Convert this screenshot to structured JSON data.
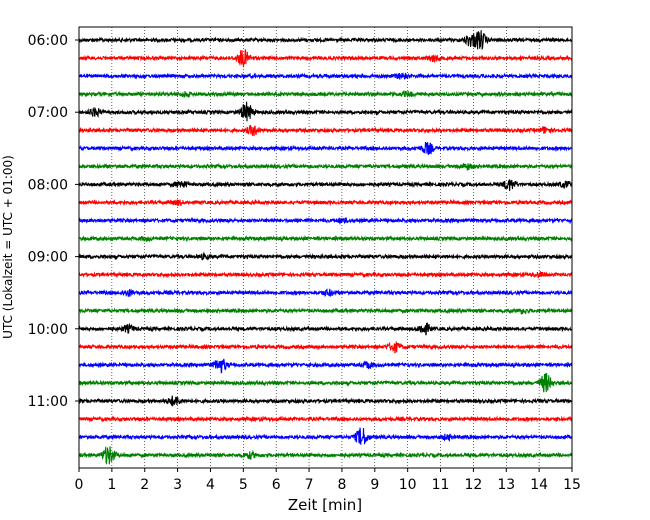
{
  "chart_data": {
    "type": "line",
    "title": "",
    "xlabel": "Zeit  [min]",
    "ylabel": "UTC (Lokalzeit = UTC + 01:00)",
    "xlim": [
      0,
      15
    ],
    "xticks": [
      0,
      1,
      2,
      3,
      4,
      5,
      6,
      7,
      8,
      9,
      10,
      11,
      12,
      13,
      14,
      15
    ],
    "ytick_labels": [
      "06:00",
      "07:00",
      "08:00",
      "09:00",
      "10:00",
      "11:00"
    ],
    "grid": "vertical dotted",
    "trace_colors": [
      "#000000",
      "#ff0000",
      "#0000ff",
      "#008000"
    ],
    "traces": [
      {
        "start": "06:00",
        "color": "#000000",
        "events": [
          {
            "t": 12.2,
            "amp": 1.0
          },
          {
            "t": 11.9,
            "amp": 0.6
          }
        ]
      },
      {
        "start": "06:15",
        "color": "#ff0000",
        "events": [
          {
            "t": 5.0,
            "amp": 0.9
          },
          {
            "t": 10.8,
            "amp": 0.3
          }
        ]
      },
      {
        "start": "06:30",
        "color": "#0000ff",
        "events": [
          {
            "t": 9.8,
            "amp": 0.25
          }
        ]
      },
      {
        "start": "06:45",
        "color": "#008000",
        "events": [
          {
            "t": 3.2,
            "amp": 0.2
          },
          {
            "t": 10.0,
            "amp": 0.2
          }
        ]
      },
      {
        "start": "07:00",
        "color": "#000000",
        "events": [
          {
            "t": 5.1,
            "amp": 1.0
          },
          {
            "t": 0.5,
            "amp": 0.4
          }
        ]
      },
      {
        "start": "07:15",
        "color": "#ff0000",
        "events": [
          {
            "t": 5.3,
            "amp": 0.5
          },
          {
            "t": 14.2,
            "amp": 0.3
          }
        ]
      },
      {
        "start": "07:30",
        "color": "#0000ff",
        "events": [
          {
            "t": 10.6,
            "amp": 0.6
          }
        ]
      },
      {
        "start": "07:45",
        "color": "#008000",
        "events": [
          {
            "t": 11.8,
            "amp": 0.3
          }
        ]
      },
      {
        "start": "08:00",
        "color": "#000000",
        "events": [
          {
            "t": 13.1,
            "amp": 0.6
          },
          {
            "t": 3.1,
            "amp": 0.35
          },
          {
            "t": 14.8,
            "amp": 0.3
          }
        ]
      },
      {
        "start": "08:15",
        "color": "#ff0000",
        "events": [
          {
            "t": 3.0,
            "amp": 0.2
          }
        ]
      },
      {
        "start": "08:30",
        "color": "#0000ff",
        "events": [
          {
            "t": 8.0,
            "amp": 0.2
          }
        ]
      },
      {
        "start": "08:45",
        "color": "#008000",
        "events": [
          {
            "t": 2.0,
            "amp": 0.15
          }
        ]
      },
      {
        "start": "09:00",
        "color": "#000000",
        "events": [
          {
            "t": 3.8,
            "amp": 0.2
          }
        ]
      },
      {
        "start": "09:15",
        "color": "#ff0000",
        "events": [
          {
            "t": 14.0,
            "amp": 0.25
          }
        ]
      },
      {
        "start": "09:30",
        "color": "#0000ff",
        "events": [
          {
            "t": 1.5,
            "amp": 0.3
          },
          {
            "t": 7.6,
            "amp": 0.3
          }
        ]
      },
      {
        "start": "09:45",
        "color": "#008000",
        "events": [
          {
            "t": 13.5,
            "amp": 0.2
          }
        ]
      },
      {
        "start": "10:00",
        "color": "#000000",
        "events": [
          {
            "t": 10.5,
            "amp": 0.6
          },
          {
            "t": 1.5,
            "amp": 0.35
          }
        ]
      },
      {
        "start": "10:15",
        "color": "#ff0000",
        "events": [
          {
            "t": 9.6,
            "amp": 0.5
          }
        ]
      },
      {
        "start": "10:30",
        "color": "#0000ff",
        "events": [
          {
            "t": 4.3,
            "amp": 0.8
          },
          {
            "t": 8.8,
            "amp": 0.3
          }
        ]
      },
      {
        "start": "10:45",
        "color": "#008000",
        "events": [
          {
            "t": 14.2,
            "amp": 1.0
          }
        ]
      },
      {
        "start": "11:00",
        "color": "#000000",
        "events": [
          {
            "t": 2.9,
            "amp": 0.5
          }
        ]
      },
      {
        "start": "11:15",
        "color": "#ff0000",
        "events": []
      },
      {
        "start": "11:30",
        "color": "#0000ff",
        "events": [
          {
            "t": 8.6,
            "amp": 1.0
          },
          {
            "t": 11.2,
            "amp": 0.25
          }
        ]
      },
      {
        "start": "11:45",
        "color": "#008000",
        "events": [
          {
            "t": 0.9,
            "amp": 1.0
          },
          {
            "t": 5.2,
            "amp": 0.3
          }
        ]
      }
    ]
  }
}
